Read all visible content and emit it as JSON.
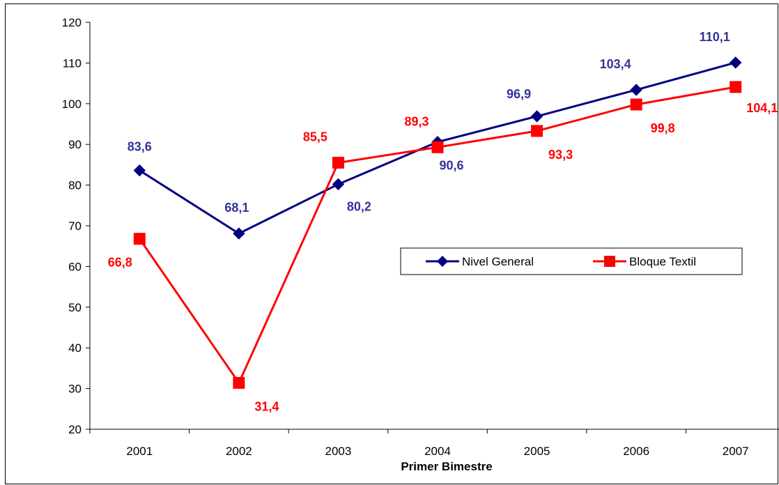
{
  "chart_data": {
    "type": "line",
    "categories": [
      "2001",
      "2002",
      "2003",
      "2004",
      "2005",
      "2006",
      "2007"
    ],
    "xlabel": "Primer Bimestre",
    "ylabel": "",
    "ylim": [
      20,
      120
    ],
    "yticks": [
      "20",
      "30",
      "40",
      "50",
      "60",
      "70",
      "80",
      "90",
      "100",
      "110",
      "120"
    ],
    "grid": false,
    "legend_position": "right",
    "series": [
      {
        "name": "Nivel General",
        "color": "#000080",
        "label_color": "#333399",
        "marker": "diamond",
        "values": [
          83.6,
          68.1,
          80.2,
          90.6,
          96.9,
          103.4,
          110.1
        ],
        "labels": [
          "83,6",
          "68,1",
          "80,2",
          "90,6",
          "96,9",
          "103,4",
          "110,1"
        ]
      },
      {
        "name": "Bloque Textil",
        "color": "#ff0000",
        "label_color": "#ff0000",
        "marker": "square",
        "values": [
          66.8,
          31.4,
          85.5,
          89.3,
          93.3,
          99.8,
          104.1
        ],
        "labels": [
          "66,8",
          "31,4",
          "85,5",
          "89,3",
          "93,3",
          "99,8",
          "104,1"
        ]
      }
    ]
  }
}
